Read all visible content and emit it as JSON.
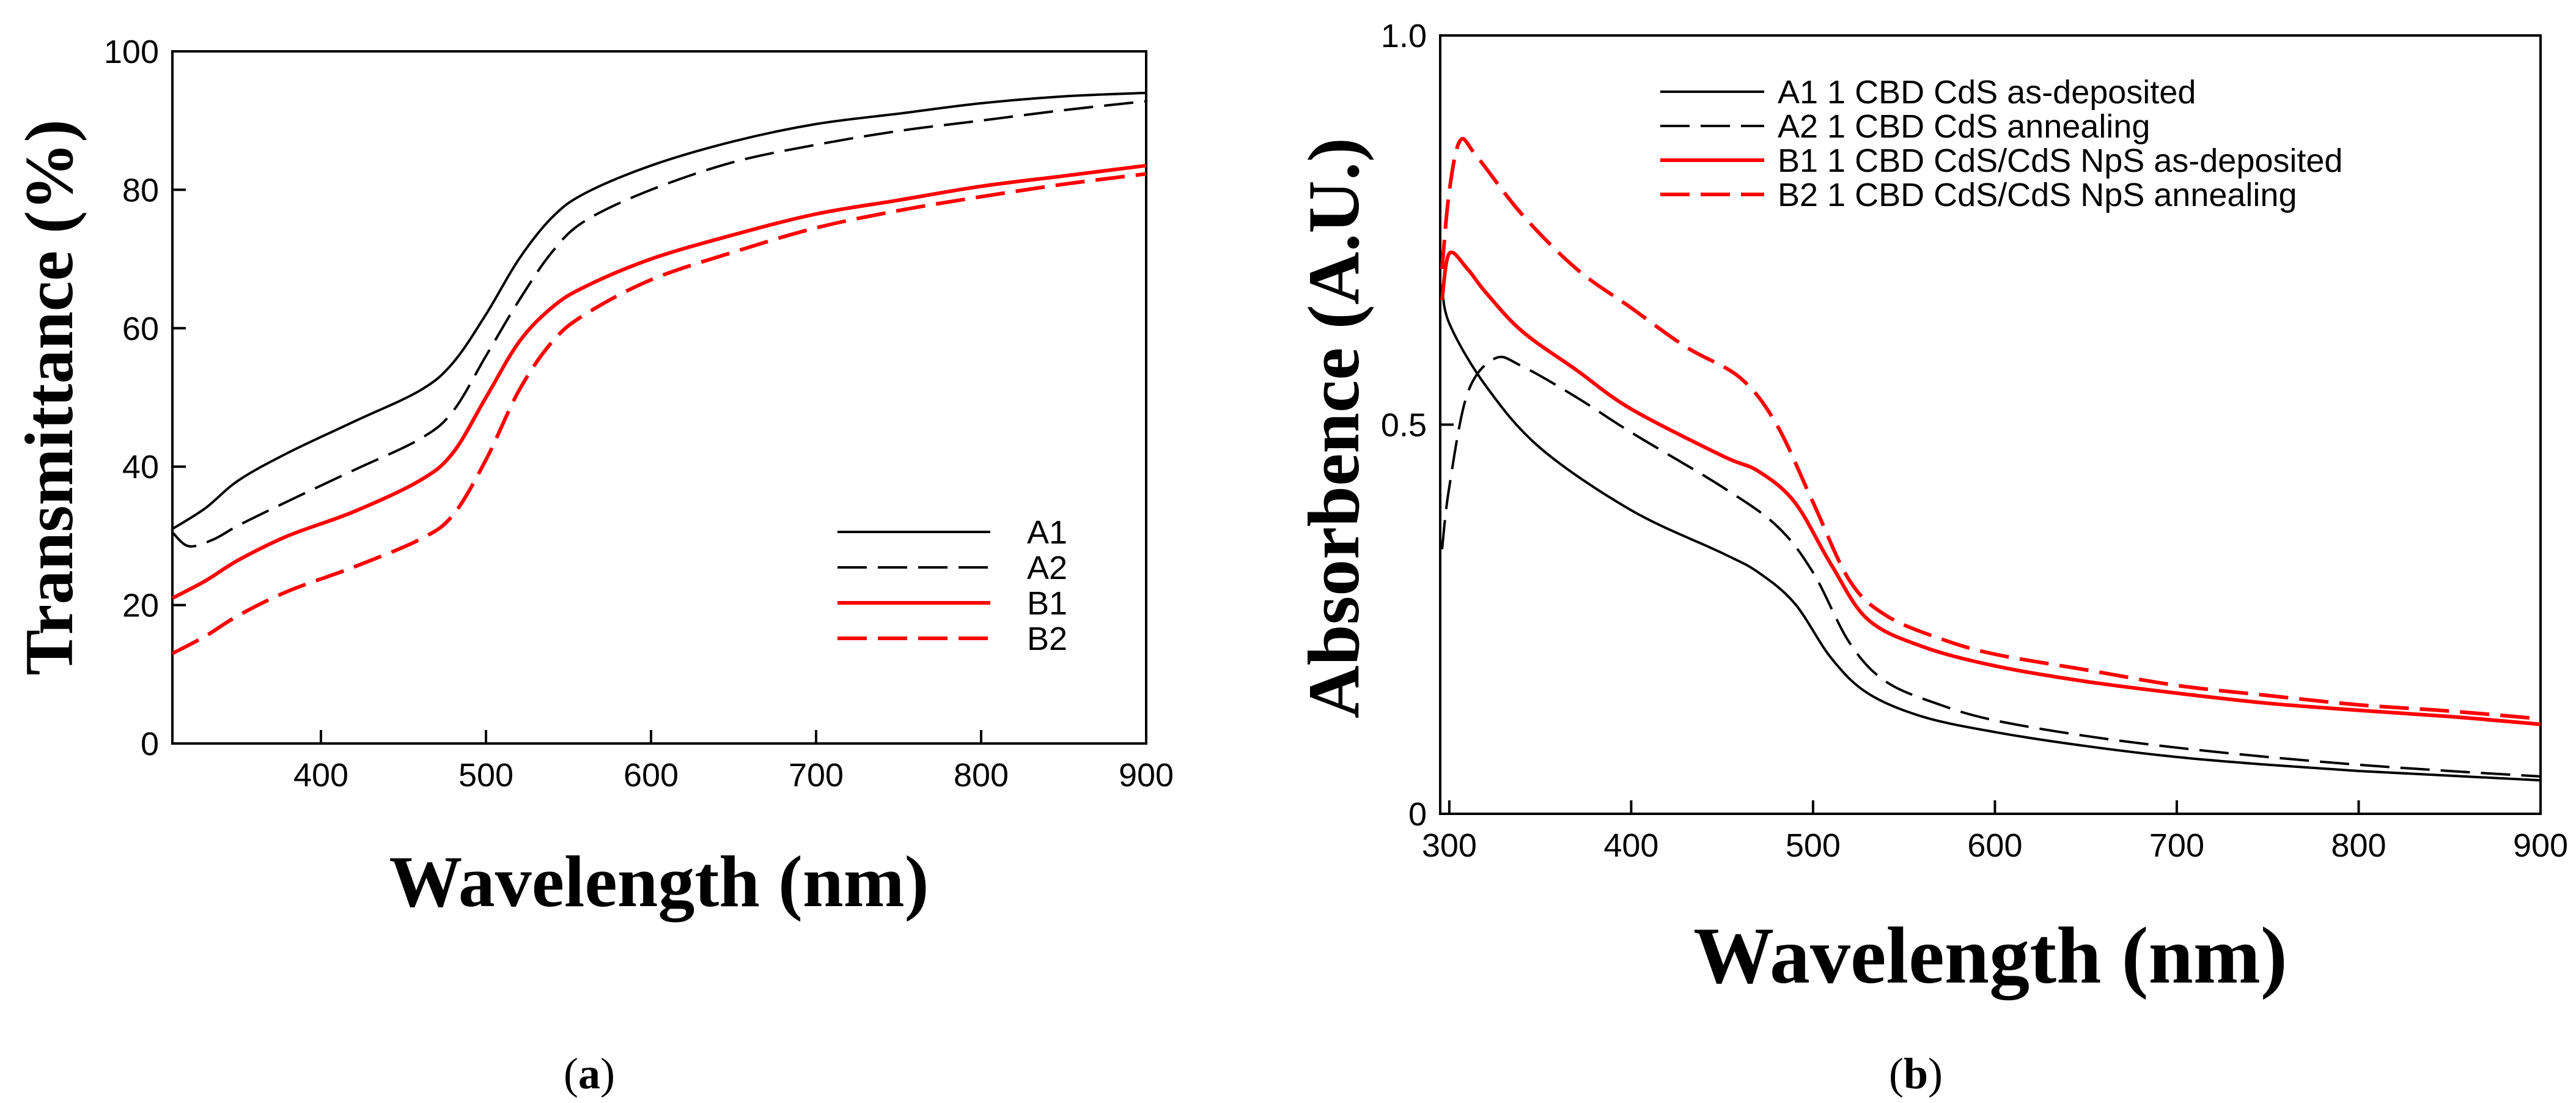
{
  "chart_data": [
    {
      "type": "line",
      "panel": "a",
      "panel_label": "(a)",
      "title": "",
      "xlabel": "Wavelength (nm)",
      "ylabel": "Transmittance (%)",
      "xlim": [
        310,
        900
      ],
      "ylim": [
        0,
        100
      ],
      "xticks": [
        400,
        500,
        600,
        700,
        800,
        900
      ],
      "yticks": [
        0,
        20,
        40,
        60,
        80,
        100
      ],
      "legend_position": "bottom-right",
      "grid": false,
      "series": [
        {
          "name": "A1",
          "color": "#000000",
          "dash": "solid",
          "x": [
            310,
            330,
            350,
            380,
            420,
            460,
            480,
            500,
            520,
            540,
            560,
            600,
            650,
            700,
            750,
            800,
            850,
            900
          ],
          "y": [
            31,
            34,
            38,
            42,
            46.5,
            51,
            55,
            62,
            70,
            76,
            79.5,
            83.5,
            87,
            89.5,
            91,
            92.5,
            93.5,
            94
          ]
        },
        {
          "name": "A2",
          "color": "#000000",
          "dash": "dashed",
          "x": [
            310,
            320,
            335,
            350,
            380,
            420,
            460,
            480,
            500,
            520,
            540,
            560,
            600,
            650,
            700,
            750,
            800,
            850,
            900
          ],
          "y": [
            30.5,
            28.5,
            29.5,
            31.5,
            35,
            39.5,
            44,
            48,
            56,
            64,
            71,
            75.5,
            80,
            84,
            86.5,
            88.5,
            90,
            91.5,
            92.8
          ]
        },
        {
          "name": "B1",
          "color": "#ff0000",
          "dash": "solid",
          "x": [
            310,
            330,
            350,
            380,
            420,
            460,
            480,
            500,
            520,
            540,
            560,
            600,
            650,
            700,
            750,
            800,
            850,
            900
          ],
          "y": [
            21,
            23.5,
            26.5,
            30,
            33.5,
            38,
            42,
            50,
            58,
            63,
            66,
            70,
            73.5,
            76.5,
            78.5,
            80.5,
            82,
            83.5
          ]
        },
        {
          "name": "B2",
          "color": "#ff0000",
          "dash": "dashed",
          "x": [
            310,
            330,
            350,
            380,
            420,
            460,
            480,
            500,
            520,
            540,
            560,
            600,
            650,
            700,
            750,
            800,
            850,
            900
          ],
          "y": [
            13,
            15.5,
            18.5,
            22,
            25.5,
            29.5,
            33,
            41,
            51,
            58,
            62,
            67,
            71,
            74.5,
            77,
            79,
            80.8,
            82.3
          ]
        }
      ],
      "legend": [
        "A1",
        "A2",
        "B1",
        "B2"
      ]
    },
    {
      "type": "line",
      "panel": "b",
      "panel_label": "(b)",
      "title": "",
      "xlabel": "Wavelength (nm)",
      "ylabel": "Absorbence (A.U.)",
      "xlim": [
        295,
        900
      ],
      "ylim": [
        0,
        1.0
      ],
      "xticks": [
        300,
        400,
        500,
        600,
        700,
        800,
        900
      ],
      "ytick_values": [
        0,
        0.5,
        1.0
      ],
      "ytick_labels": [
        "0",
        "0.5",
        "1.0"
      ],
      "legend_position": "top-center",
      "grid": false,
      "series": [
        {
          "name": "A1 1 CBD CdS as-deposited",
          "color": "#000000",
          "dash": "solid",
          "x": [
            296,
            300,
            320,
            350,
            400,
            450,
            470,
            490,
            510,
            530,
            560,
            600,
            650,
            700,
            750,
            800,
            850,
            900
          ],
          "y": [
            0.68,
            0.63,
            0.55,
            0.47,
            0.39,
            0.335,
            0.31,
            0.27,
            0.2,
            0.155,
            0.125,
            0.105,
            0.087,
            0.073,
            0.063,
            0.055,
            0.049,
            0.043
          ]
        },
        {
          "name": "A2 1 CBD CdS annealing",
          "color": "#000000",
          "dash": "dashed",
          "x": [
            296,
            300,
            310,
            325,
            340,
            370,
            400,
            450,
            480,
            500,
            520,
            540,
            570,
            600,
            650,
            700,
            750,
            800,
            850,
            900
          ],
          "y": [
            0.34,
            0.42,
            0.54,
            0.585,
            0.575,
            0.535,
            0.49,
            0.42,
            0.37,
            0.31,
            0.22,
            0.17,
            0.14,
            0.12,
            0.1,
            0.085,
            0.073,
            0.063,
            0.055,
            0.048
          ]
        },
        {
          "name": "B1 1 CBD CdS/CdS NpS as-deposited",
          "color": "#ff0000",
          "dash": "solid",
          "x": [
            296,
            300,
            310,
            320,
            340,
            370,
            400,
            450,
            470,
            490,
            510,
            530,
            560,
            600,
            650,
            700,
            750,
            800,
            850,
            900
          ],
          "y": [
            0.66,
            0.72,
            0.7,
            0.67,
            0.62,
            0.57,
            0.52,
            0.46,
            0.44,
            0.4,
            0.32,
            0.25,
            0.215,
            0.19,
            0.17,
            0.155,
            0.142,
            0.133,
            0.125,
            0.115
          ]
        },
        {
          "name": "B2 1 CBD CdS/CdS NpS annealing",
          "color": "#ff0000",
          "dash": "dashed",
          "x": [
            296,
            300,
            306,
            315,
            340,
            370,
            400,
            430,
            460,
            480,
            500,
            520,
            540,
            570,
            600,
            650,
            700,
            750,
            800,
            850,
            900
          ],
          "y": [
            0.7,
            0.8,
            0.865,
            0.845,
            0.77,
            0.7,
            0.65,
            0.6,
            0.56,
            0.5,
            0.4,
            0.3,
            0.255,
            0.225,
            0.205,
            0.185,
            0.165,
            0.152,
            0.14,
            0.132,
            0.122
          ]
        }
      ],
      "legend": [
        "A1 1 CBD CdS as-deposited",
        "A2 1 CBD CdS annealing",
        "B1 1 CBD CdS/CdS NpS as-deposited",
        "B2 1 CBD CdS/CdS NpS annealing"
      ]
    }
  ]
}
